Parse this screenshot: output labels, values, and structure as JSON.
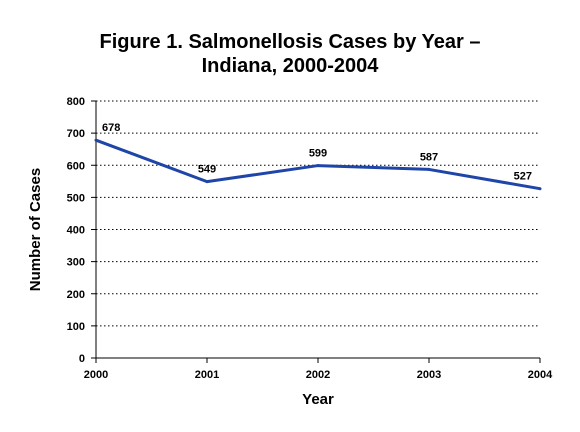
{
  "chart_data": {
    "type": "line",
    "title_line1": "Figure 1.  Salmonellosis Cases by Year –",
    "title_line2": "Indiana, 2000-2004",
    "xlabel": "Year",
    "ylabel": "Number of Cases",
    "categories": [
      "2000",
      "2001",
      "2002",
      "2003",
      "2004"
    ],
    "series": [
      {
        "values": [
          678,
          549,
          599,
          587,
          527
        ],
        "data_labels": [
          "678",
          "549",
          "599",
          "587",
          "527"
        ],
        "color": "#1f45a8"
      }
    ],
    "ylim": [
      0,
      800
    ],
    "yticks": [
      0,
      100,
      200,
      300,
      400,
      500,
      600,
      700,
      800
    ],
    "ytick_labels": [
      "0",
      "100",
      "200",
      "300",
      "400",
      "500",
      "600",
      "700",
      "800"
    ],
    "grid": "horizontal-dotted",
    "legend": "none"
  }
}
